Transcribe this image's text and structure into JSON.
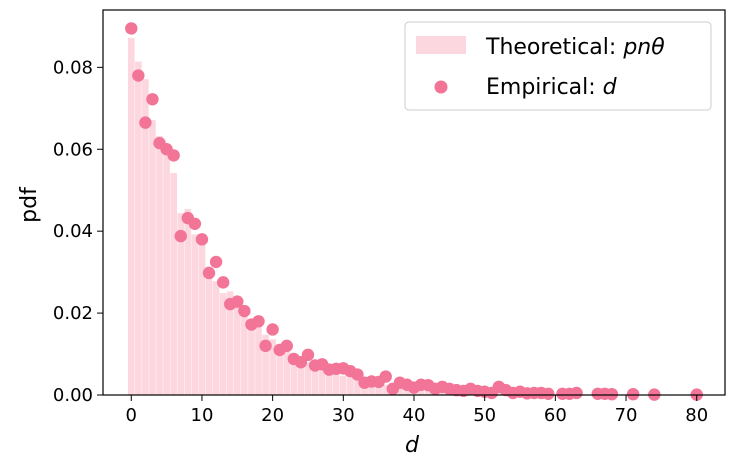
{
  "chart_data": {
    "type": "bar",
    "xlabel": "d",
    "ylabel": "pdf",
    "xlim": [
      -4,
      84
    ],
    "ylim": [
      0,
      0.094
    ],
    "xticks": [
      0,
      10,
      20,
      30,
      40,
      50,
      60,
      70,
      80
    ],
    "yticks": [
      0.0,
      0.02,
      0.04,
      0.06,
      0.08
    ],
    "ytick_labels": [
      "0.00",
      "0.02",
      "0.04",
      "0.06",
      "0.08"
    ],
    "legend_position": "top-right",
    "colors": {
      "bars": "#fdd7e0",
      "points": "#f27496",
      "axis": "#000000"
    },
    "series": [
      {
        "name": "Theoretical: pnθ",
        "legend_prefix": "Theoretical",
        "legend_symbol": "pnθ",
        "kind": "bar",
        "x": [
          0,
          1,
          2,
          3,
          4,
          5,
          6,
          7,
          8,
          9,
          10,
          11,
          12,
          13,
          14,
          15,
          16,
          17,
          18,
          19,
          20,
          21,
          22,
          23,
          24,
          25,
          26,
          27,
          28,
          29,
          30,
          31,
          32,
          33,
          34,
          35,
          36,
          37,
          38,
          39,
          40,
          41,
          42,
          43,
          44,
          45,
          46,
          47,
          48,
          49,
          50,
          51,
          52,
          53,
          54,
          55,
          56,
          57,
          58,
          59,
          60,
          61,
          62,
          63,
          64,
          65,
          66,
          67,
          68,
          69,
          70,
          71,
          72,
          73,
          74,
          75,
          76,
          77,
          78,
          79,
          80
        ],
        "values": [
          0.0872,
          0.0814,
          0.0771,
          0.0671,
          0.0632,
          0.0604,
          0.0542,
          0.0444,
          0.0454,
          0.0392,
          0.0376,
          0.0314,
          0.0278,
          0.0249,
          0.0253,
          0.0222,
          0.0197,
          0.0175,
          0.0167,
          0.0147,
          0.0136,
          0.0122,
          0.0107,
          0.0096,
          0.0089,
          0.008,
          0.0072,
          0.0065,
          0.0058,
          0.0052,
          0.0047,
          0.0042,
          0.0038,
          0.0034,
          0.0031,
          0.0028,
          0.0025,
          0.0022,
          0.002,
          0.0018,
          0.0016,
          0.0014,
          0.0013,
          0.0012,
          0.0011,
          0.001,
          0.0009,
          0.0008,
          0.0007,
          0.0006,
          0.0006,
          0.0005,
          0.0005,
          0.0004,
          0.0004,
          0.0003,
          0.0003,
          0.0003,
          0.0002,
          0.0002,
          0.0002,
          0.0002,
          0.0001,
          0.0001,
          0.0001,
          0.0001,
          0.0001,
          0.0001,
          0.0001,
          0.0001,
          0.0001,
          0.0001,
          0.0,
          0.0,
          0.0,
          0.0,
          0.0,
          0.0,
          0.0,
          0.0,
          0.0
        ]
      },
      {
        "name": "Empirical: d",
        "legend_prefix": "Empirical",
        "legend_symbol": "d",
        "kind": "scatter",
        "x": [
          0,
          1,
          2,
          3,
          4,
          5,
          6,
          7,
          8,
          9,
          10,
          11,
          12,
          13,
          14,
          15,
          16,
          17,
          18,
          19,
          20,
          21,
          22,
          23,
          24,
          25,
          26,
          27,
          28,
          29,
          30,
          31,
          32,
          33,
          34,
          35,
          36,
          37,
          38,
          39,
          40,
          41,
          42,
          43,
          44,
          45,
          46,
          47,
          48,
          49,
          50,
          51,
          52,
          53,
          54,
          55,
          56,
          57,
          58,
          59,
          61,
          62,
          63,
          66,
          67,
          68,
          71,
          74,
          80
        ],
        "values": [
          0.0895,
          0.078,
          0.0665,
          0.0722,
          0.0615,
          0.06,
          0.0585,
          0.0388,
          0.0432,
          0.0418,
          0.038,
          0.0298,
          0.0325,
          0.0275,
          0.0222,
          0.0228,
          0.0205,
          0.0172,
          0.018,
          0.012,
          0.016,
          0.011,
          0.012,
          0.0088,
          0.008,
          0.0098,
          0.0072,
          0.0075,
          0.0062,
          0.0064,
          0.0065,
          0.0058,
          0.005,
          0.003,
          0.0033,
          0.0032,
          0.0045,
          0.0015,
          0.003,
          0.0025,
          0.0018,
          0.0025,
          0.0024,
          0.0015,
          0.002,
          0.0015,
          0.0012,
          0.001,
          0.0015,
          0.001,
          0.0008,
          0.0005,
          0.002,
          0.0012,
          0.0005,
          0.0008,
          0.0004,
          0.0005,
          0.0005,
          0.0003,
          0.0003,
          0.0003,
          0.0005,
          0.0003,
          0.0003,
          0.0002,
          0.0002,
          0.0001,
          0.0001
        ]
      }
    ]
  }
}
